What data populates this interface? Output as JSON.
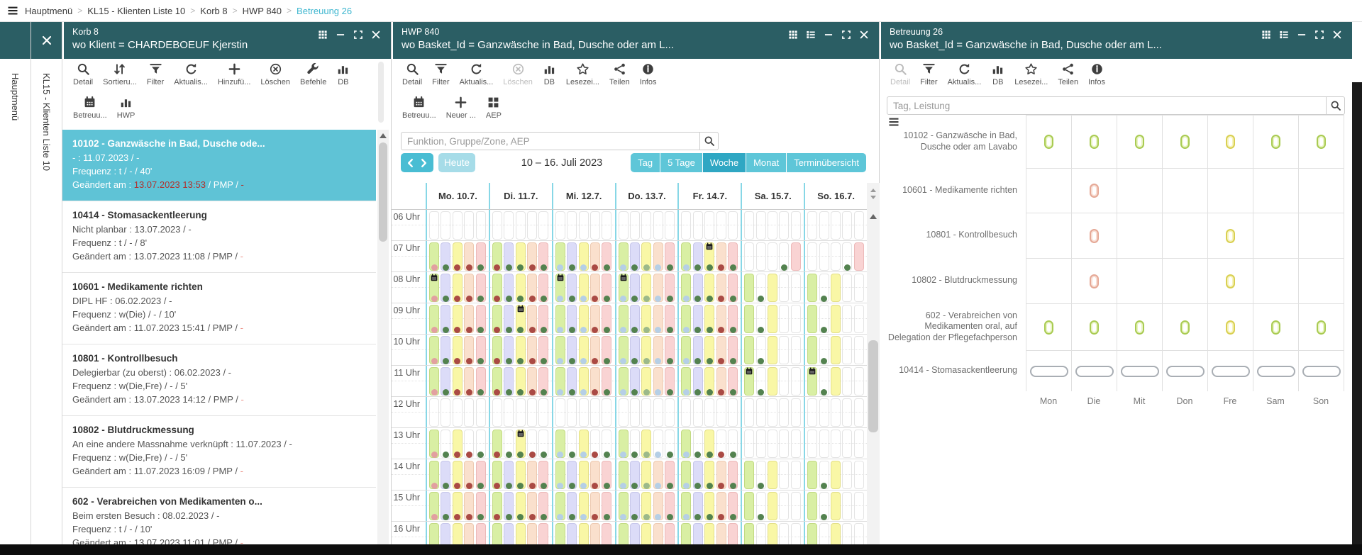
{
  "colors": {
    "header_teal": "#2b5e64",
    "selection_cyan": "#5fc3d6",
    "accent_cyan": "#3db6cf",
    "alert_red": "#b03330",
    "soft_red": "#ec9187"
  },
  "breadcrumb": {
    "items": [
      {
        "label": "Hauptmenü",
        "active": false
      },
      {
        "label": "KL15 - Klienten Liste 10",
        "active": false
      },
      {
        "label": "Korb 8",
        "active": false
      },
      {
        "label": "HWP 840",
        "active": false
      },
      {
        "label": "Betreuung 26",
        "active": true
      }
    ],
    "separator": ">"
  },
  "side_tabs": [
    {
      "title": "Hauptmenü",
      "has_close": false
    },
    {
      "title": "KL15 - Klienten Liste 10",
      "has_close": true
    }
  ],
  "panels": {
    "korb": {
      "title": "Korb 8",
      "subtitle": "wo Klient = CHARDEBOEUF Kjerstin",
      "window_controls": [
        "grid9",
        "minus",
        "maximize",
        "close"
      ],
      "toolbar": [
        {
          "icon": "search",
          "label": "Detail"
        },
        {
          "icon": "sort",
          "label": "Sortieru..."
        },
        {
          "icon": "filter",
          "label": "Filter"
        },
        {
          "icon": "refresh",
          "label": "Aktualis..."
        },
        {
          "icon": "plus",
          "label": "Hinzufü..."
        },
        {
          "icon": "delete",
          "label": "Löschen"
        },
        {
          "icon": "wrench",
          "label": "Befehle"
        },
        {
          "icon": "chart",
          "label": "DB"
        }
      ],
      "toolbar2": [
        {
          "icon": "calendar",
          "label": "Betreuu..."
        },
        {
          "icon": "chart",
          "label": "HWP"
        }
      ],
      "cards": [
        {
          "selected": true,
          "title": "10102 - Ganzwäsche in Bad, Dusche ode...",
          "line1": "- : 11.07.2023 / -",
          "line2": "Frequenz : t / - / 40'",
          "meta": [
            {
              "t": "Geändert am : "
            },
            {
              "t": "13.07.2023 13:53",
              "red": true
            },
            {
              "t": " / PMP / "
            },
            {
              "t": "-",
              "red": true
            }
          ]
        },
        {
          "selected": false,
          "title": "10414 - Stomasackentleerung",
          "line1": "Nicht planbar : 13.07.2023 / -",
          "line2": "Frequenz : t / - / 8'",
          "meta": [
            {
              "t": "Geändert am : 13.07.2023 11:08 / PMP / "
            },
            {
              "t": "-",
              "red": true
            }
          ]
        },
        {
          "selected": false,
          "title": "10601 - Medikamente richten",
          "line1": "DIPL HF : 06.02.2023 / -",
          "line2": "Frequenz : w(Die) / - / 10'",
          "meta": [
            {
              "t": "Geändert am : 11.07.2023 15:41 / PMP / "
            },
            {
              "t": "-",
              "red": true
            }
          ]
        },
        {
          "selected": false,
          "title": "10801 - Kontrollbesuch",
          "line1": "Delegierbar (zu oberst) : 06.02.2023 / -",
          "line2": "Frequenz : w(Die,Fre) / - / 5'",
          "meta": [
            {
              "t": "Geändert am : 13.07.2023 14:12 / PMP / "
            },
            {
              "t": "-",
              "red": true
            }
          ]
        },
        {
          "selected": false,
          "title": "10802 - Blutdruckmessung",
          "line1": "An eine andere Massnahme verknüpft : 11.07.2023 / -",
          "line2": "Frequenz : w(Die,Fre) / - / 5'",
          "meta": [
            {
              "t": "Geändert am : 11.07.2023 16:09 / PMP / "
            },
            {
              "t": "-",
              "red": true
            }
          ]
        },
        {
          "selected": false,
          "title": "602 - Verabreichen von Medikamenten o...",
          "line1": "Beim ersten Besuch : 08.02.2023 / -",
          "line2": "Frequenz : t / - / 10'",
          "meta": [
            {
              "t": "Geändert am : 13.07.2023 11:01 / PMP / "
            },
            {
              "t": "-",
              "red": true
            }
          ]
        }
      ]
    },
    "hwp": {
      "title": "HWP 840",
      "subtitle": "wo Basket_Id = Ganzwäsche in Bad, Dusche oder am L...",
      "window_controls": [
        "grid9",
        "listrows",
        "minus",
        "maximize",
        "close"
      ],
      "toolbar": [
        {
          "icon": "search",
          "label": "Detail"
        },
        {
          "icon": "filter",
          "label": "Filter"
        },
        {
          "icon": "refresh",
          "label": "Aktualis..."
        },
        {
          "icon": "delete",
          "label": "Löschen",
          "disabled": true
        },
        {
          "icon": "chart",
          "label": "DB"
        },
        {
          "icon": "star",
          "label": "Lesezei..."
        },
        {
          "icon": "share",
          "label": "Teilen"
        },
        {
          "icon": "info",
          "label": "Infos"
        }
      ],
      "toolbar2": [
        {
          "icon": "calendar",
          "label": "Betreuu..."
        },
        {
          "icon": "plus",
          "label": "Neuer ..."
        },
        {
          "icon": "aep",
          "label": "AEP"
        }
      ],
      "search_placeholder": "Funktion, Gruppe/Zone, AEP",
      "nav": {
        "today": "Heute",
        "range": "10 – 16. Juli 2023",
        "views": [
          "Tag",
          "5 Tage",
          "Woche",
          "Monat",
          "Terminübersicht"
        ],
        "active_view": "Woche"
      },
      "calendar": {
        "hours": [
          "06 Uhr",
          "07 Uhr",
          "08 Uhr",
          "09 Uhr",
          "10 Uhr",
          "11 Uhr",
          "12 Uhr",
          "13 Uhr",
          "14 Uhr",
          "15 Uhr",
          "16 Uhr"
        ],
        "days": [
          {
            "label": "Mo. 10.7.",
            "weekend": false,
            "dots": [
              "salmon",
              "dgreen",
              "dred",
              "dred",
              "dgreen"
            ]
          },
          {
            "label": "Di. 11.7.",
            "weekend": false,
            "dots": [
              "dred",
              "dgreen",
              "dgreen",
              "dred",
              "dgreen"
            ]
          },
          {
            "label": "Mi. 12.7.",
            "weekend": false,
            "dots": [
              "lblue",
              "dgreen",
              "lblue",
              "dred",
              "dgreen"
            ]
          },
          {
            "label": "Do. 13.7.",
            "weekend": false,
            "dots": [
              "lblue",
              "dgreen",
              "sage",
              "lblue",
              "dgreen"
            ]
          },
          {
            "label": "Fr. 14.7.",
            "weekend": false,
            "dots": [
              "lblue",
              "dgreen",
              "dgreen",
              "dred",
              "dgreen"
            ]
          },
          {
            "label": "Sa. 15.7.",
            "weekend": true,
            "dots": [
              "dgreen"
            ]
          },
          {
            "label": "So. 16.7.",
            "weekend": true,
            "dots": [
              "dgreen"
            ]
          }
        ],
        "lane_colors": [
          "green",
          "lavender",
          "yellow",
          "peach",
          "pink"
        ],
        "plan": [
          {
            "wd": [],
            "we": [],
            "wdd": false,
            "wed": false
          },
          {
            "wd": [
              0,
              1,
              2,
              3,
              4
            ],
            "we": [
              4
            ],
            "wdd": true,
            "wed": true
          },
          {
            "wd": [
              0,
              1,
              2,
              3,
              4
            ],
            "we": [
              0,
              2
            ],
            "wdd": true,
            "wed": true
          },
          {
            "wd": [
              0,
              1,
              2,
              3,
              4
            ],
            "we": [
              0,
              2
            ],
            "wdd": true,
            "wed": true
          },
          {
            "wd": [
              0,
              1,
              2,
              3,
              4
            ],
            "we": [
              0,
              2
            ],
            "wdd": true,
            "wed": true
          },
          {
            "wd": [
              0,
              1,
              2,
              3,
              4
            ],
            "we": [
              0,
              2
            ],
            "wdd": true,
            "wed": true
          },
          {
            "wd": [],
            "we": [],
            "wdd": false,
            "wed": false
          },
          {
            "wd": [
              0,
              2
            ],
            "we": [],
            "wdd": true,
            "wed": false
          },
          {
            "wd": [
              0,
              1,
              2,
              3,
              4
            ],
            "we": [
              0,
              2
            ],
            "wdd": true,
            "wed": true
          },
          {
            "wd": [
              0,
              1,
              2,
              3,
              4
            ],
            "we": [
              0,
              2
            ],
            "wdd": true,
            "wed": true
          },
          {
            "wd": [
              0,
              1,
              2,
              3,
              4
            ],
            "we": [
              0,
              2
            ],
            "wdd": true,
            "wed": true
          }
        ],
        "icon_cells": [
          {
            "day": 4,
            "hour": 1,
            "lane": 2
          },
          {
            "day": 0,
            "hour": 2,
            "lane": 0
          },
          {
            "day": 2,
            "hour": 2,
            "lane": 0
          },
          {
            "day": 3,
            "hour": 2,
            "lane": 0
          },
          {
            "day": 1,
            "hour": 3,
            "lane": 2
          },
          {
            "day": 5,
            "hour": 5,
            "lane": 0
          },
          {
            "day": 6,
            "hour": 5,
            "lane": 0
          },
          {
            "day": 1,
            "hour": 7,
            "lane": 2
          }
        ]
      }
    },
    "betreuung": {
      "title": "Betreuung 26",
      "subtitle": "wo Basket_Id = Ganzwäsche in Bad, Dusche oder am L...",
      "window_controls": [
        "grid9",
        "listrows",
        "minus",
        "maximize",
        "close"
      ],
      "toolbar": [
        {
          "icon": "search",
          "label": "Detail",
          "disabled": true
        },
        {
          "icon": "filter",
          "label": "Filter"
        },
        {
          "icon": "refresh",
          "label": "Aktualis..."
        },
        {
          "icon": "chart",
          "label": "DB"
        },
        {
          "icon": "star",
          "label": "Lesezei..."
        },
        {
          "icon": "share",
          "label": "Teilen"
        },
        {
          "icon": "info",
          "label": "Infos"
        }
      ],
      "search_placeholder": "Tag, Leistung",
      "matrix": {
        "columns": [
          "Mon",
          "Die",
          "Mit",
          "Don",
          "Fre",
          "Sam",
          "Son"
        ],
        "rows": [
          {
            "label": "10102 - Ganzwäsche in Bad, Dusche oder am Lavabo",
            "cells": [
              "green",
              "green",
              "green",
              "green",
              "yellow",
              "green",
              "green"
            ]
          },
          {
            "label": "10601 - Medikamente richten",
            "cells": [
              null,
              "pink",
              null,
              null,
              null,
              null,
              null
            ]
          },
          {
            "label": "10801 - Kontrollbesuch",
            "cells": [
              null,
              "pink",
              null,
              null,
              "yellow",
              null,
              null
            ]
          },
          {
            "label": "10802 - Blutdruckmessung",
            "cells": [
              null,
              "pink",
              null,
              null,
              "yellow",
              null,
              null
            ]
          },
          {
            "label": "602 - Verabreichen von Medikamenten oral, auf Delegation der Pflegefachperson",
            "cells": [
              "green",
              "green",
              "green",
              "green",
              "yellow",
              "green",
              "green"
            ]
          },
          {
            "label": "10414 - Stomasackentleerung",
            "cells": [
              "bar",
              "bar",
              "bar",
              "bar",
              "bar",
              "bar",
              "bar"
            ]
          }
        ]
      }
    }
  }
}
